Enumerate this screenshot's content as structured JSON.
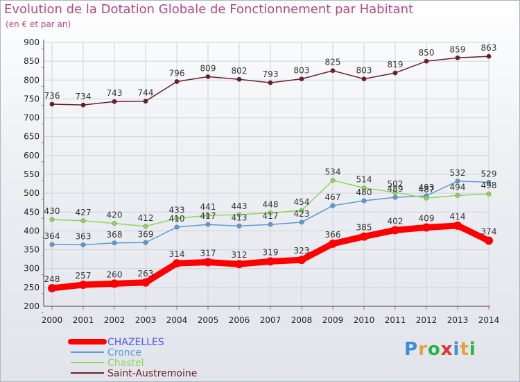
{
  "header": {
    "title": "Evolution de la Dotation Globale de Fonctionnement par Habitant",
    "subtitle": "(en € et par an)"
  },
  "logo": {
    "text": "Proxiti",
    "letters": [
      "P",
      "r",
      "o",
      "x",
      "i",
      "t",
      "i"
    ],
    "colors": [
      "#3a8fd8",
      "#e8a23a",
      "#2bb24c",
      "#e3342f",
      "#3a8fd8",
      "#e8a23a",
      "#2bb24c"
    ]
  },
  "chart_data": {
    "type": "line",
    "x": [
      2000,
      2001,
      2002,
      2003,
      2004,
      2005,
      2006,
      2007,
      2008,
      2009,
      2010,
      2011,
      2012,
      2013,
      2014
    ],
    "ylim": [
      200,
      900
    ],
    "yticks": [
      200,
      250,
      300,
      350,
      400,
      450,
      500,
      550,
      600,
      650,
      700,
      750,
      800,
      850,
      900
    ],
    "grid": true,
    "legend_position": "bottom-left",
    "series": [
      {
        "name": "CHAZELLES",
        "color": "#ff0000",
        "highlight": true,
        "values": [
          248,
          257,
          260,
          263,
          314,
          317,
          312,
          319,
          323,
          366,
          385,
          402,
          409,
          414,
          374
        ]
      },
      {
        "name": "Cronce",
        "color": "#5a9bd5",
        "highlight": false,
        "values": [
          364,
          363,
          368,
          369,
          410,
          417,
          413,
          417,
          423,
          467,
          480,
          489,
          493,
          532,
          529
        ]
      },
      {
        "name": "Chastel",
        "color": "#8fd45a",
        "highlight": false,
        "values": [
          430,
          427,
          420,
          412,
          433,
          441,
          443,
          448,
          454,
          534,
          514,
          502,
          487,
          494,
          498
        ]
      },
      {
        "name": "Saint-Austremoine",
        "color": "#6b1f2a",
        "highlight": false,
        "values": [
          736,
          734,
          743,
          744,
          796,
          809,
          802,
          793,
          803,
          825,
          803,
          819,
          850,
          859,
          863
        ]
      }
    ]
  }
}
